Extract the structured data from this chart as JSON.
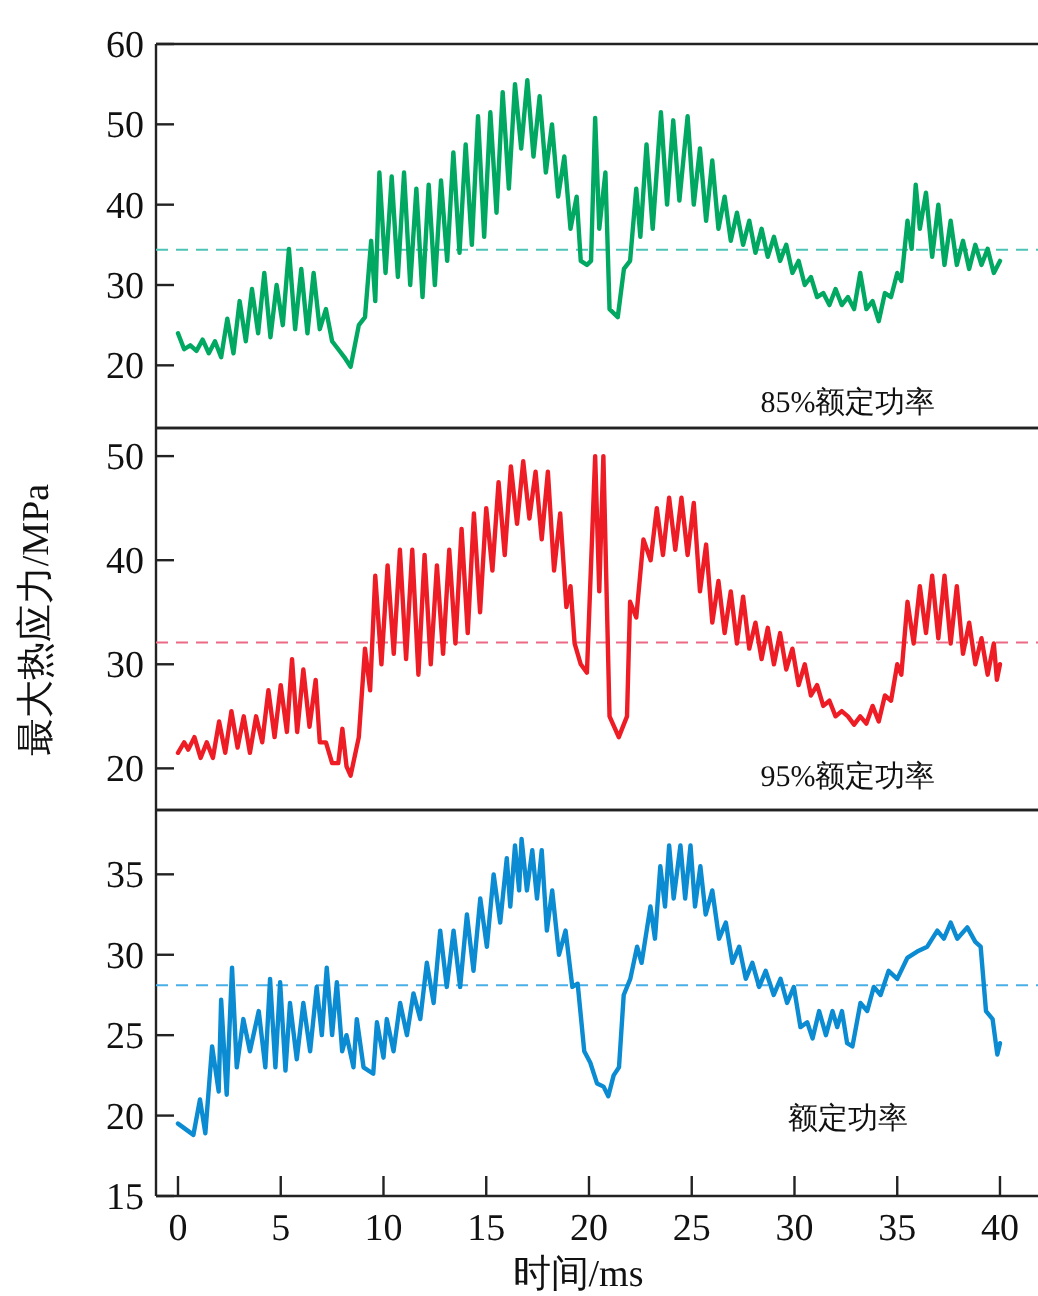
{
  "chart_data": [
    {
      "type": "line",
      "xlim": [
        -1.07,
        41.85
      ],
      "ylim": [
        12.2,
        60
      ],
      "yticks": [
        20,
        30,
        40,
        50,
        60
      ],
      "tick_labels": "y",
      "annotations": [
        "85%额定功率"
      ],
      "ref_lines": [
        {
          "axis": "y",
          "value": 34.4,
          "color": "#4cc3b4",
          "line_style": "dashed"
        }
      ],
      "series": [
        {
          "color": "#00a862",
          "x": [
            0,
            0.3,
            0.6,
            0.9,
            1.2,
            1.5,
            1.8,
            2.1,
            2.4,
            2.7,
            3.0,
            3.3,
            3.6,
            3.9,
            4.2,
            4.5,
            4.8,
            5.1,
            5.4,
            5.7,
            6.0,
            6.3,
            6.6,
            6.9,
            7.2,
            7.5,
            7.8,
            8.1,
            8.4,
            8.8,
            9.1,
            9.4,
            9.6,
            9.8,
            10.1,
            10.4,
            10.7,
            11.0,
            11.3,
            11.6,
            11.9,
            12.2,
            12.5,
            12.8,
            13.1,
            13.4,
            13.7,
            14.0,
            14.3,
            14.6,
            14.9,
            15.2,
            15.5,
            15.8,
            16.1,
            16.4,
            16.7,
            17.0,
            17.3,
            17.6,
            17.9,
            18.2,
            18.5,
            18.8,
            19.1,
            19.4,
            19.6,
            19.9,
            20.1,
            20.3,
            20.5,
            20.8,
            21.0,
            21.4,
            21.7,
            22.0,
            22.3,
            22.5,
            22.8,
            23.1,
            23.5,
            23.8,
            24.1,
            24.4,
            24.8,
            25.1,
            25.4,
            25.7,
            26.0,
            26.3,
            26.6,
            26.9,
            27.2,
            27.5,
            27.8,
            28.1,
            28.4,
            28.7,
            29.0,
            29.3,
            29.6,
            29.9,
            30.2,
            30.5,
            30.8,
            31.1,
            31.4,
            31.7,
            32.0,
            32.3,
            32.6,
            32.9,
            33.2,
            33.5,
            33.8,
            34.1,
            34.4,
            34.7,
            35.0,
            35.2,
            35.5,
            35.7,
            35.9,
            36.1,
            36.4,
            36.7,
            37.0,
            37.3,
            37.6,
            37.9,
            38.2,
            38.5,
            38.8,
            39.1,
            39.4,
            39.7,
            40.0
          ],
          "values": [
            24,
            22,
            22.5,
            21.8,
            23.2,
            21.5,
            23,
            21,
            25.8,
            21.5,
            28,
            23,
            29.5,
            24,
            31.5,
            23.5,
            30,
            25,
            34.5,
            24.5,
            32,
            24,
            31.5,
            24.5,
            27,
            23,
            22,
            21,
            19.8,
            25,
            26,
            35.5,
            28,
            44,
            31.5,
            43.5,
            31,
            44,
            30,
            42,
            28.5,
            42.5,
            30,
            43,
            33,
            46.5,
            34,
            47.5,
            35,
            51,
            36,
            51.5,
            39,
            54,
            42,
            55,
            47,
            55.5,
            46,
            53.5,
            44,
            50,
            41,
            46,
            37,
            41,
            33,
            32.5,
            33,
            50.8,
            37,
            44,
            27,
            26,
            32,
            33,
            42,
            36,
            47.5,
            37,
            51.5,
            40,
            50.5,
            40.5,
            51,
            40,
            47,
            38,
            45.5,
            37,
            41,
            35.5,
            39,
            35,
            38,
            34,
            37,
            33.5,
            36,
            33,
            35,
            31.5,
            33,
            30,
            31,
            28.5,
            29,
            27.5,
            29.5,
            27.5,
            28.5,
            27,
            31.5,
            27,
            28,
            25.5,
            29,
            28.5,
            31.5,
            30.5,
            38,
            34.5,
            42.5,
            37,
            41.5,
            33.5,
            40,
            32.5,
            38,
            32.5,
            35.5,
            32,
            35,
            32.5,
            34.5,
            31.5,
            33
          ]
        }
      ]
    },
    {
      "type": "line",
      "xlim": [
        -1.07,
        41.85
      ],
      "ylim": [
        16,
        52.7
      ],
      "yticks": [
        20,
        30,
        40,
        50
      ],
      "tick_labels": "y",
      "ylabel": "最大热应力/MPa",
      "annotations": [
        "95%额定功率"
      ],
      "ref_lines": [
        {
          "axis": "y",
          "value": 32.1,
          "color": "#ec6a84",
          "line_style": "dashed"
        }
      ],
      "series": [
        {
          "color": "#ee1c25",
          "x": [
            0,
            0.3,
            0.5,
            0.8,
            1.1,
            1.4,
            1.7,
            2.0,
            2.3,
            2.6,
            2.9,
            3.2,
            3.5,
            3.8,
            4.1,
            4.4,
            4.7,
            5.0,
            5.3,
            5.55,
            5.8,
            6.1,
            6.4,
            6.7,
            6.9,
            7.2,
            7.5,
            7.8,
            8.0,
            8.2,
            8.4,
            8.8,
            9.1,
            9.35,
            9.6,
            9.9,
            10.2,
            10.5,
            10.8,
            11.1,
            11.4,
            11.7,
            12.0,
            12.3,
            12.6,
            12.9,
            13.2,
            13.5,
            13.8,
            14.1,
            14.4,
            14.7,
            15.0,
            15.3,
            15.6,
            15.9,
            16.2,
            16.5,
            16.8,
            17.1,
            17.4,
            17.7,
            18.0,
            18.3,
            18.6,
            18.9,
            19.1,
            19.3,
            19.6,
            19.9,
            20.3,
            20.5,
            20.7,
            21.0,
            21.45,
            21.85,
            22.0,
            22.3,
            22.65,
            23.0,
            23.3,
            23.6,
            23.9,
            24.2,
            24.5,
            24.8,
            25.1,
            25.4,
            25.7,
            26.0,
            26.3,
            26.6,
            26.9,
            27.2,
            27.5,
            27.8,
            28.1,
            28.4,
            28.7,
            29.0,
            29.3,
            29.6,
            29.9,
            30.2,
            30.5,
            30.8,
            31.1,
            31.4,
            31.7,
            32.0,
            32.3,
            32.6,
            32.9,
            33.2,
            33.5,
            33.8,
            34.1,
            34.4,
            34.7,
            35.0,
            35.2,
            35.5,
            35.8,
            36.1,
            36.4,
            36.7,
            37.0,
            37.3,
            37.6,
            37.9,
            38.2,
            38.5,
            38.8,
            39.1,
            39.4,
            39.7,
            39.85,
            40.0
          ],
          "values": [
            21.5,
            22.5,
            21.8,
            23,
            21,
            22.5,
            21,
            24.5,
            21.5,
            25.5,
            22,
            25,
            21.5,
            25,
            22.5,
            27.5,
            23,
            28,
            23.5,
            30.5,
            23.5,
            29.5,
            24,
            28.5,
            22.5,
            22.5,
            20.5,
            20.5,
            23.8,
            20.2,
            19.3,
            23,
            31.5,
            27.5,
            38.5,
            30,
            39.5,
            31,
            41,
            30.5,
            41,
            29,
            40.5,
            30,
            39.5,
            31,
            41,
            32,
            43,
            33,
            44.5,
            35,
            45,
            39,
            47.5,
            40.5,
            49,
            43.5,
            49.5,
            44,
            48.5,
            42,
            48.5,
            39,
            44.5,
            35.5,
            37.5,
            32,
            30,
            29.2,
            50,
            37,
            50,
            25,
            23,
            25,
            36,
            34.5,
            42,
            40,
            45,
            40.5,
            46,
            41,
            46,
            40.5,
            45.5,
            37,
            41.5,
            34,
            38,
            33,
            37,
            32,
            36.5,
            31.5,
            34,
            30.5,
            33.5,
            30,
            33,
            29.5,
            31.5,
            28,
            30,
            27,
            28,
            26,
            26.5,
            25,
            25.5,
            25,
            24.2,
            25,
            24.3,
            26,
            24.5,
            27,
            26.5,
            30,
            29,
            36,
            32,
            37.5,
            33,
            38.5,
            32.5,
            38.5,
            32,
            37.5,
            31,
            34,
            30,
            32.5,
            29,
            32,
            28.5,
            30
          ]
        }
      ]
    },
    {
      "type": "line",
      "xlim": [
        -1.07,
        41.85
      ],
      "ylim": [
        15,
        39
      ],
      "xticks": [
        0,
        5,
        10,
        15,
        20,
        25,
        30,
        35,
        40
      ],
      "yticks": [
        15,
        20,
        25,
        30,
        35
      ],
      "xlabel": "时间/ms",
      "annotations": [
        "额定功率"
      ],
      "ref_lines": [
        {
          "axis": "y",
          "value": 28.1,
          "color": "#4aaee6",
          "line_style": "dashed"
        }
      ],
      "series": [
        {
          "color": "#0a8bd2",
          "x": [
            0,
            0.75,
            1.07,
            1.33,
            1.66,
            1.98,
            2.1,
            2.37,
            2.63,
            2.86,
            3.18,
            3.5,
            3.93,
            4.25,
            4.48,
            4.74,
            4.97,
            5.23,
            5.45,
            5.78,
            6.1,
            6.43,
            6.75,
            7.0,
            7.24,
            7.5,
            7.73,
            7.99,
            8.2,
            8.54,
            8.7,
            9.03,
            9.5,
            9.68,
            10.0,
            10.16,
            10.49,
            10.81,
            11.14,
            11.46,
            11.79,
            12.11,
            12.44,
            12.76,
            13.08,
            13.41,
            13.73,
            14.06,
            14.38,
            14.71,
            15.03,
            15.36,
            15.68,
            16.0,
            16.17,
            16.4,
            16.6,
            16.72,
            16.98,
            17.24,
            17.47,
            17.7,
            17.95,
            18.21,
            18.54,
            18.86,
            19.19,
            19.45,
            19.77,
            20.06,
            20.39,
            20.71,
            20.94,
            21.2,
            21.46,
            21.69,
            22.01,
            22.34,
            22.56,
            22.99,
            23.21,
            23.47,
            23.7,
            23.9,
            24.12,
            24.45,
            24.68,
            24.94,
            25.16,
            25.42,
            25.68,
            26.0,
            26.33,
            26.66,
            26.98,
            27.31,
            27.63,
            27.95,
            28.28,
            28.6,
            28.99,
            29.32,
            29.64,
            29.97,
            30.29,
            30.62,
            30.88,
            31.2,
            31.53,
            31.85,
            32.08,
            32.31,
            32.56,
            32.82,
            33.21,
            33.54,
            33.86,
            34.19,
            34.58,
            35.0,
            35.49,
            35.97,
            36.46,
            36.95,
            37.27,
            37.6,
            37.92,
            38.41,
            38.8,
            39.06,
            39.32,
            39.64,
            39.87,
            40.0
          ],
          "values": [
            19.5,
            18.8,
            21,
            18.9,
            24.3,
            21.5,
            27.2,
            21.3,
            29.2,
            23,
            26,
            24,
            26.5,
            23,
            28.5,
            23,
            28.3,
            22.8,
            27,
            23.5,
            27,
            24,
            28,
            25,
            29.2,
            25,
            28.3,
            24,
            25,
            23,
            26,
            23,
            22.6,
            25.8,
            23.6,
            26,
            24,
            27,
            25,
            27.6,
            26,
            29.5,
            27,
            31.5,
            28,
            31.5,
            28,
            32.5,
            29,
            33.5,
            30.5,
            35,
            32,
            36,
            33,
            36.8,
            34,
            37.2,
            34,
            36.5,
            33.5,
            36.5,
            31.5,
            34,
            30,
            31.5,
            28,
            28.2,
            24,
            23.3,
            22,
            21.8,
            21.2,
            22.5,
            23,
            27.5,
            28.5,
            30.5,
            29.5,
            33,
            31,
            35.5,
            33,
            36.8,
            33.5,
            36.8,
            33.5,
            36.8,
            33,
            35.5,
            32.5,
            34,
            31,
            32,
            29.5,
            30.5,
            28.5,
            29.5,
            28,
            29,
            27.5,
            28.5,
            27,
            28,
            25.5,
            25.8,
            24.8,
            26.5,
            25,
            26.5,
            25.5,
            26.5,
            24.5,
            24.3,
            27,
            26.5,
            28,
            27.5,
            29,
            28.5,
            29.8,
            30.2,
            30.5,
            31.5,
            31,
            32,
            31,
            31.7,
            30.8,
            30.5,
            26.5,
            26,
            23.8,
            24.5
          ]
        }
      ]
    }
  ]
}
